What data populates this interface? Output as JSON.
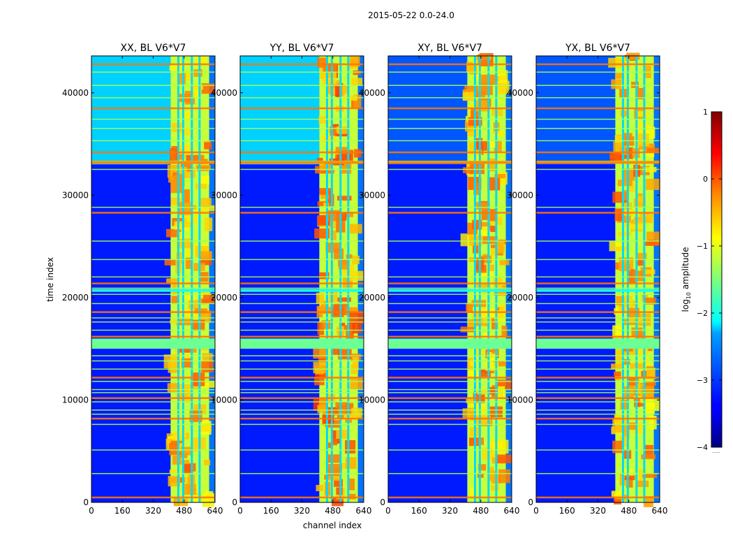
{
  "figure": {
    "suptitle": "2015-05-22 0.0-24.0",
    "xlabel": "channel index",
    "ylabel": "time index"
  },
  "chart_data": {
    "type": "heatmap",
    "title": "2015-05-22 0.0-24.0",
    "xlabel": "channel index",
    "ylabel": "time index",
    "xlim": [
      0,
      640
    ],
    "ylim": [
      0,
      43600
    ],
    "xticks": [
      0,
      160,
      320,
      480,
      640
    ],
    "yticks": [
      0,
      10000,
      20000,
      30000,
      40000
    ],
    "panels": [
      {
        "title": "XX, BL V6*V7",
        "polarization": "XX"
      },
      {
        "title": "YY, BL V6*V7",
        "polarization": "YY"
      },
      {
        "title": "XY, BL V6*V7",
        "polarization": "XY"
      },
      {
        "title": "YX, BL V6*V7",
        "polarization": "YX"
      }
    ],
    "colorbar": {
      "label": "log10 amplitude",
      "label_main": "log",
      "label_sub": "10",
      "label_tail": " amplitude",
      "range": [
        -4,
        1
      ],
      "ticks": [
        1,
        0,
        -1,
        -2,
        -3,
        -4
      ],
      "colormap": "jet",
      "dotted_mark": "......"
    },
    "features": {
      "band_channels": [
        410,
        610
      ],
      "band_column_channels": [
        450,
        475,
        520,
        560
      ],
      "upper_region_rows": [
        33000,
        43600
      ],
      "horizontal_lines": [
        500,
        2800,
        5100,
        7600,
        8200,
        8600,
        9000,
        9800,
        10200,
        10700,
        11000,
        11800,
        12200,
        13000,
        13800,
        14300,
        16200,
        16800,
        17600,
        18000,
        18600,
        19400,
        20300,
        20900,
        21400,
        22000,
        23700,
        25500,
        28300,
        28800,
        32500,
        33300,
        34200,
        35300,
        36500,
        37400,
        38500,
        39500,
        40700,
        42000,
        42800
      ]
    }
  }
}
